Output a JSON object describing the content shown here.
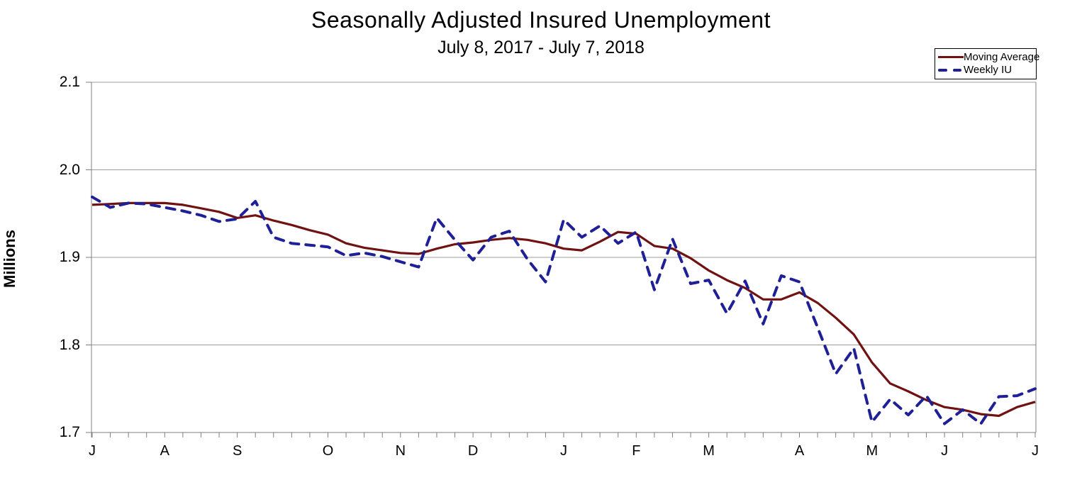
{
  "page": {
    "background": "#ffffff"
  },
  "chart_data": {
    "type": "line",
    "title": "Seasonally Adjusted Insured Unemployment",
    "subtitle": "July 8, 2017 - July 7, 2018",
    "ylabel": "Millions",
    "ylim": [
      1.7,
      2.1
    ],
    "ytick_labels": [
      "2.1",
      "2.0",
      "1.9",
      "1.8",
      "1.7"
    ],
    "yticks": [
      2.1,
      2.0,
      1.9,
      1.8,
      1.7
    ],
    "grid": "horizontal",
    "legend_position": "top-right",
    "x_unit": "weeks",
    "n_weeks": 53,
    "month_ticks": [
      {
        "label": "J",
        "week": 0
      },
      {
        "label": "A",
        "week": 4
      },
      {
        "label": "S",
        "week": 8
      },
      {
        "label": "O",
        "week": 13
      },
      {
        "label": "N",
        "week": 17
      },
      {
        "label": "D",
        "week": 21
      },
      {
        "label": "J",
        "week": 26
      },
      {
        "label": "F",
        "week": 30
      },
      {
        "label": "M",
        "week": 34
      },
      {
        "label": "A",
        "week": 39
      },
      {
        "label": "M",
        "week": 43
      },
      {
        "label": "J",
        "week": 47
      },
      {
        "label": "J",
        "week": 52
      }
    ],
    "series": [
      {
        "name": "Moving Average",
        "style": "solid",
        "color": "#701112",
        "values": [
          1.96,
          1.961,
          1.962,
          1.962,
          1.962,
          1.96,
          1.956,
          1.952,
          1.945,
          1.948,
          1.942,
          1.937,
          1.931,
          1.926,
          1.916,
          1.911,
          1.908,
          1.905,
          1.904,
          1.91,
          1.915,
          1.917,
          1.92,
          1.922,
          1.92,
          1.916,
          1.91,
          1.908,
          1.918,
          1.929,
          1.927,
          1.913,
          1.91,
          1.899,
          1.885,
          1.874,
          1.865,
          1.852,
          1.852,
          1.86,
          1.848,
          1.831,
          1.812,
          1.78,
          1.756,
          1.747,
          1.737,
          1.729,
          1.726,
          1.721,
          1.719,
          1.729,
          1.735
        ]
      },
      {
        "name": "Weekly IU",
        "style": "dashed",
        "color": "#1f2096",
        "values": [
          1.969,
          1.957,
          1.962,
          1.961,
          1.957,
          1.953,
          1.948,
          1.941,
          1.944,
          1.964,
          1.923,
          1.916,
          1.914,
          1.912,
          1.902,
          1.905,
          1.901,
          1.895,
          1.889,
          1.945,
          1.92,
          1.897,
          1.923,
          1.93,
          1.898,
          1.872,
          1.943,
          1.923,
          1.936,
          1.916,
          1.929,
          1.863,
          1.921,
          1.87,
          1.874,
          1.836,
          1.873,
          1.824,
          1.879,
          1.872,
          1.82,
          1.767,
          1.796,
          1.712,
          1.738,
          1.72,
          1.742,
          1.71,
          1.726,
          1.71,
          1.741,
          1.742,
          1.75
        ]
      }
    ],
    "axis_colors": {
      "gridline": "#9c9c9c",
      "axis": "#7f7f7f"
    }
  }
}
